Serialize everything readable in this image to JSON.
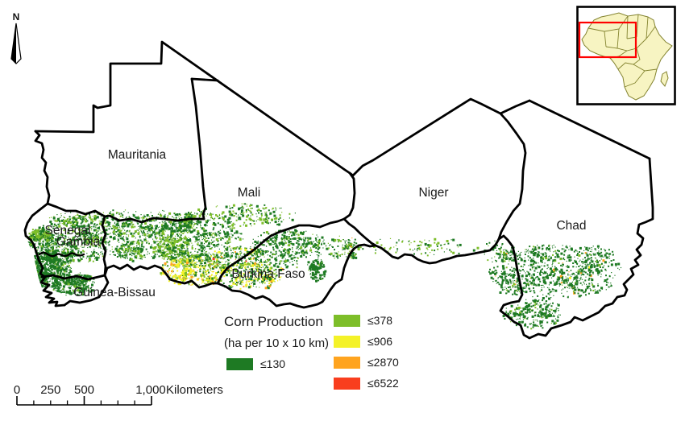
{
  "map": {
    "countries": [
      {
        "name": "Mauritania"
      },
      {
        "name": "Mali"
      },
      {
        "name": "Niger"
      },
      {
        "name": "Chad"
      },
      {
        "name": "Senegal"
      },
      {
        "name": "Gambia"
      },
      {
        "name": "Guinea-Bissau"
      },
      {
        "name": "Burkina Faso"
      }
    ]
  },
  "north_arrow": {
    "label": "N"
  },
  "legend": {
    "title": "Corn Production",
    "subtitle": "(ha per 10 x 10 km)",
    "classes": [
      {
        "label": "≤130",
        "color": "#1e7a23"
      },
      {
        "label": "≤378",
        "color": "#7dbe29"
      },
      {
        "label": "≤906",
        "color": "#f4f228"
      },
      {
        "label": "≤2870",
        "color": "#ffa41f"
      },
      {
        "label": "≤6522",
        "color": "#f93e1e"
      }
    ]
  },
  "scale_bar": {
    "ticks": [
      "0",
      "250",
      "500",
      "1,000"
    ],
    "unit": "Kilometers"
  },
  "inset": {
    "land_color": "#f7f4c2",
    "line_color": "#83832f",
    "extent_color": "#ff0000"
  }
}
